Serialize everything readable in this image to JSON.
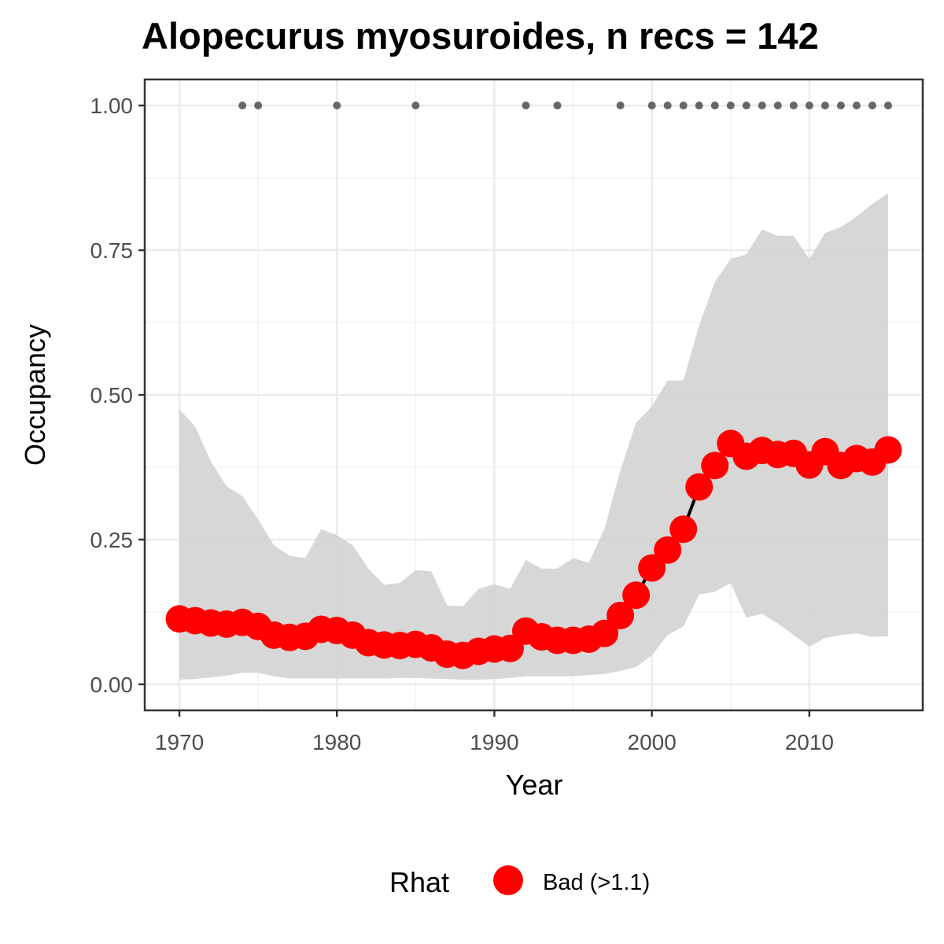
{
  "chart_data": {
    "type": "line",
    "title": "Alopecurus myosuroides, n recs = 142",
    "xlabel": "Year",
    "ylabel": "Occupancy",
    "xlim": [
      1967.8,
      2017.2
    ],
    "ylim": [
      -0.045,
      1.045
    ],
    "x_ticks": [
      1970,
      1980,
      1990,
      2000,
      2010
    ],
    "x_tick_labels": [
      "1970",
      "1980",
      "1990",
      "2000",
      "2010"
    ],
    "y_ticks": [
      0,
      0.25,
      0.5,
      0.75,
      1.0
    ],
    "y_tick_labels": [
      "0.00",
      "0.25",
      "0.50",
      "0.75",
      "1.00"
    ],
    "grid": true,
    "legend": {
      "title": "Rhat",
      "position": "bottom",
      "entries": [
        {
          "label": "Bad (>1.1)",
          "color": "#ff0000"
        }
      ]
    },
    "colors": {
      "points": "#ff0000",
      "line": "#000000",
      "ribbon": "#d3d3d3",
      "record_dots": "#666666"
    },
    "series": [
      {
        "kind": "mean",
        "x": [
          1970,
          1971,
          1972,
          1973,
          1974,
          1975,
          1976,
          1977,
          1978,
          1979,
          1980,
          1981,
          1982,
          1983,
          1984,
          1985,
          1986,
          1987,
          1988,
          1989,
          1990,
          1991,
          1992,
          1993,
          1994,
          1995,
          1996,
          1997,
          1998,
          1999,
          2000,
          2001,
          2002,
          2003,
          2004,
          2005,
          2006,
          2007,
          2008,
          2009,
          2010,
          2011,
          2012,
          2013,
          2014,
          2015
        ],
        "values": [
          0.113,
          0.11,
          0.106,
          0.104,
          0.107,
          0.1,
          0.085,
          0.081,
          0.083,
          0.095,
          0.093,
          0.085,
          0.072,
          0.068,
          0.067,
          0.069,
          0.063,
          0.052,
          0.05,
          0.057,
          0.061,
          0.062,
          0.092,
          0.082,
          0.076,
          0.076,
          0.078,
          0.088,
          0.119,
          0.154,
          0.201,
          0.232,
          0.268,
          0.341,
          0.378,
          0.416,
          0.394,
          0.404,
          0.397,
          0.399,
          0.379,
          0.402,
          0.378,
          0.39,
          0.384,
          0.405
        ]
      },
      {
        "kind": "ribbon_lower",
        "x": [
          1970,
          1971,
          1972,
          1973,
          1974,
          1975,
          1976,
          1977,
          1978,
          1979,
          1980,
          1981,
          1982,
          1983,
          1984,
          1985,
          1986,
          1987,
          1988,
          1989,
          1990,
          1991,
          1992,
          1993,
          1994,
          1995,
          1996,
          1997,
          1998,
          1999,
          2000,
          2001,
          2002,
          2003,
          2004,
          2005,
          2006,
          2007,
          2008,
          2009,
          2010,
          2011,
          2012,
          2013,
          2014,
          2015
        ],
        "values": [
          0.008,
          0.009,
          0.012,
          0.015,
          0.02,
          0.02,
          0.014,
          0.01,
          0.01,
          0.01,
          0.01,
          0.01,
          0.01,
          0.01,
          0.011,
          0.011,
          0.01,
          0.009,
          0.008,
          0.008,
          0.009,
          0.011,
          0.014,
          0.014,
          0.014,
          0.014,
          0.016,
          0.018,
          0.023,
          0.03,
          0.05,
          0.085,
          0.1,
          0.155,
          0.16,
          0.175,
          0.115,
          0.122,
          0.105,
          0.085,
          0.065,
          0.08,
          0.085,
          0.088,
          0.082,
          0.083
        ]
      },
      {
        "kind": "ribbon_upper",
        "x": [
          1970,
          1971,
          1972,
          1973,
          1974,
          1975,
          1976,
          1977,
          1978,
          1979,
          1980,
          1981,
          1982,
          1983,
          1984,
          1985,
          1986,
          1987,
          1988,
          1989,
          1990,
          1991,
          1992,
          1993,
          1994,
          1995,
          1996,
          1997,
          1998,
          1999,
          2000,
          2001,
          2002,
          2003,
          2004,
          2005,
          2006,
          2007,
          2008,
          2009,
          2010,
          2011,
          2012,
          2013,
          2014,
          2015
        ],
        "values": [
          0.475,
          0.445,
          0.385,
          0.342,
          0.325,
          0.285,
          0.24,
          0.222,
          0.218,
          0.268,
          0.258,
          0.24,
          0.2,
          0.172,
          0.175,
          0.197,
          0.195,
          0.136,
          0.135,
          0.165,
          0.173,
          0.165,
          0.215,
          0.2,
          0.2,
          0.218,
          0.21,
          0.27,
          0.37,
          0.452,
          0.48,
          0.525,
          0.525,
          0.62,
          0.695,
          0.735,
          0.743,
          0.786,
          0.775,
          0.775,
          0.735,
          0.78,
          0.79,
          0.808,
          0.83,
          0.848
        ]
      },
      {
        "kind": "records",
        "x": [
          1974,
          1975,
          1980,
          1985,
          1992,
          1994,
          1998,
          2000,
          2001,
          2002,
          2003,
          2004,
          2005,
          2006,
          2007,
          2008,
          2009,
          2010,
          2011,
          2012,
          2013,
          2014,
          2015
        ],
        "values": [
          1,
          1,
          1,
          1,
          1,
          1,
          1,
          1,
          1,
          1,
          1,
          1,
          1,
          1,
          1,
          1,
          1,
          1,
          1,
          1,
          1,
          1,
          1
        ]
      }
    ]
  }
}
